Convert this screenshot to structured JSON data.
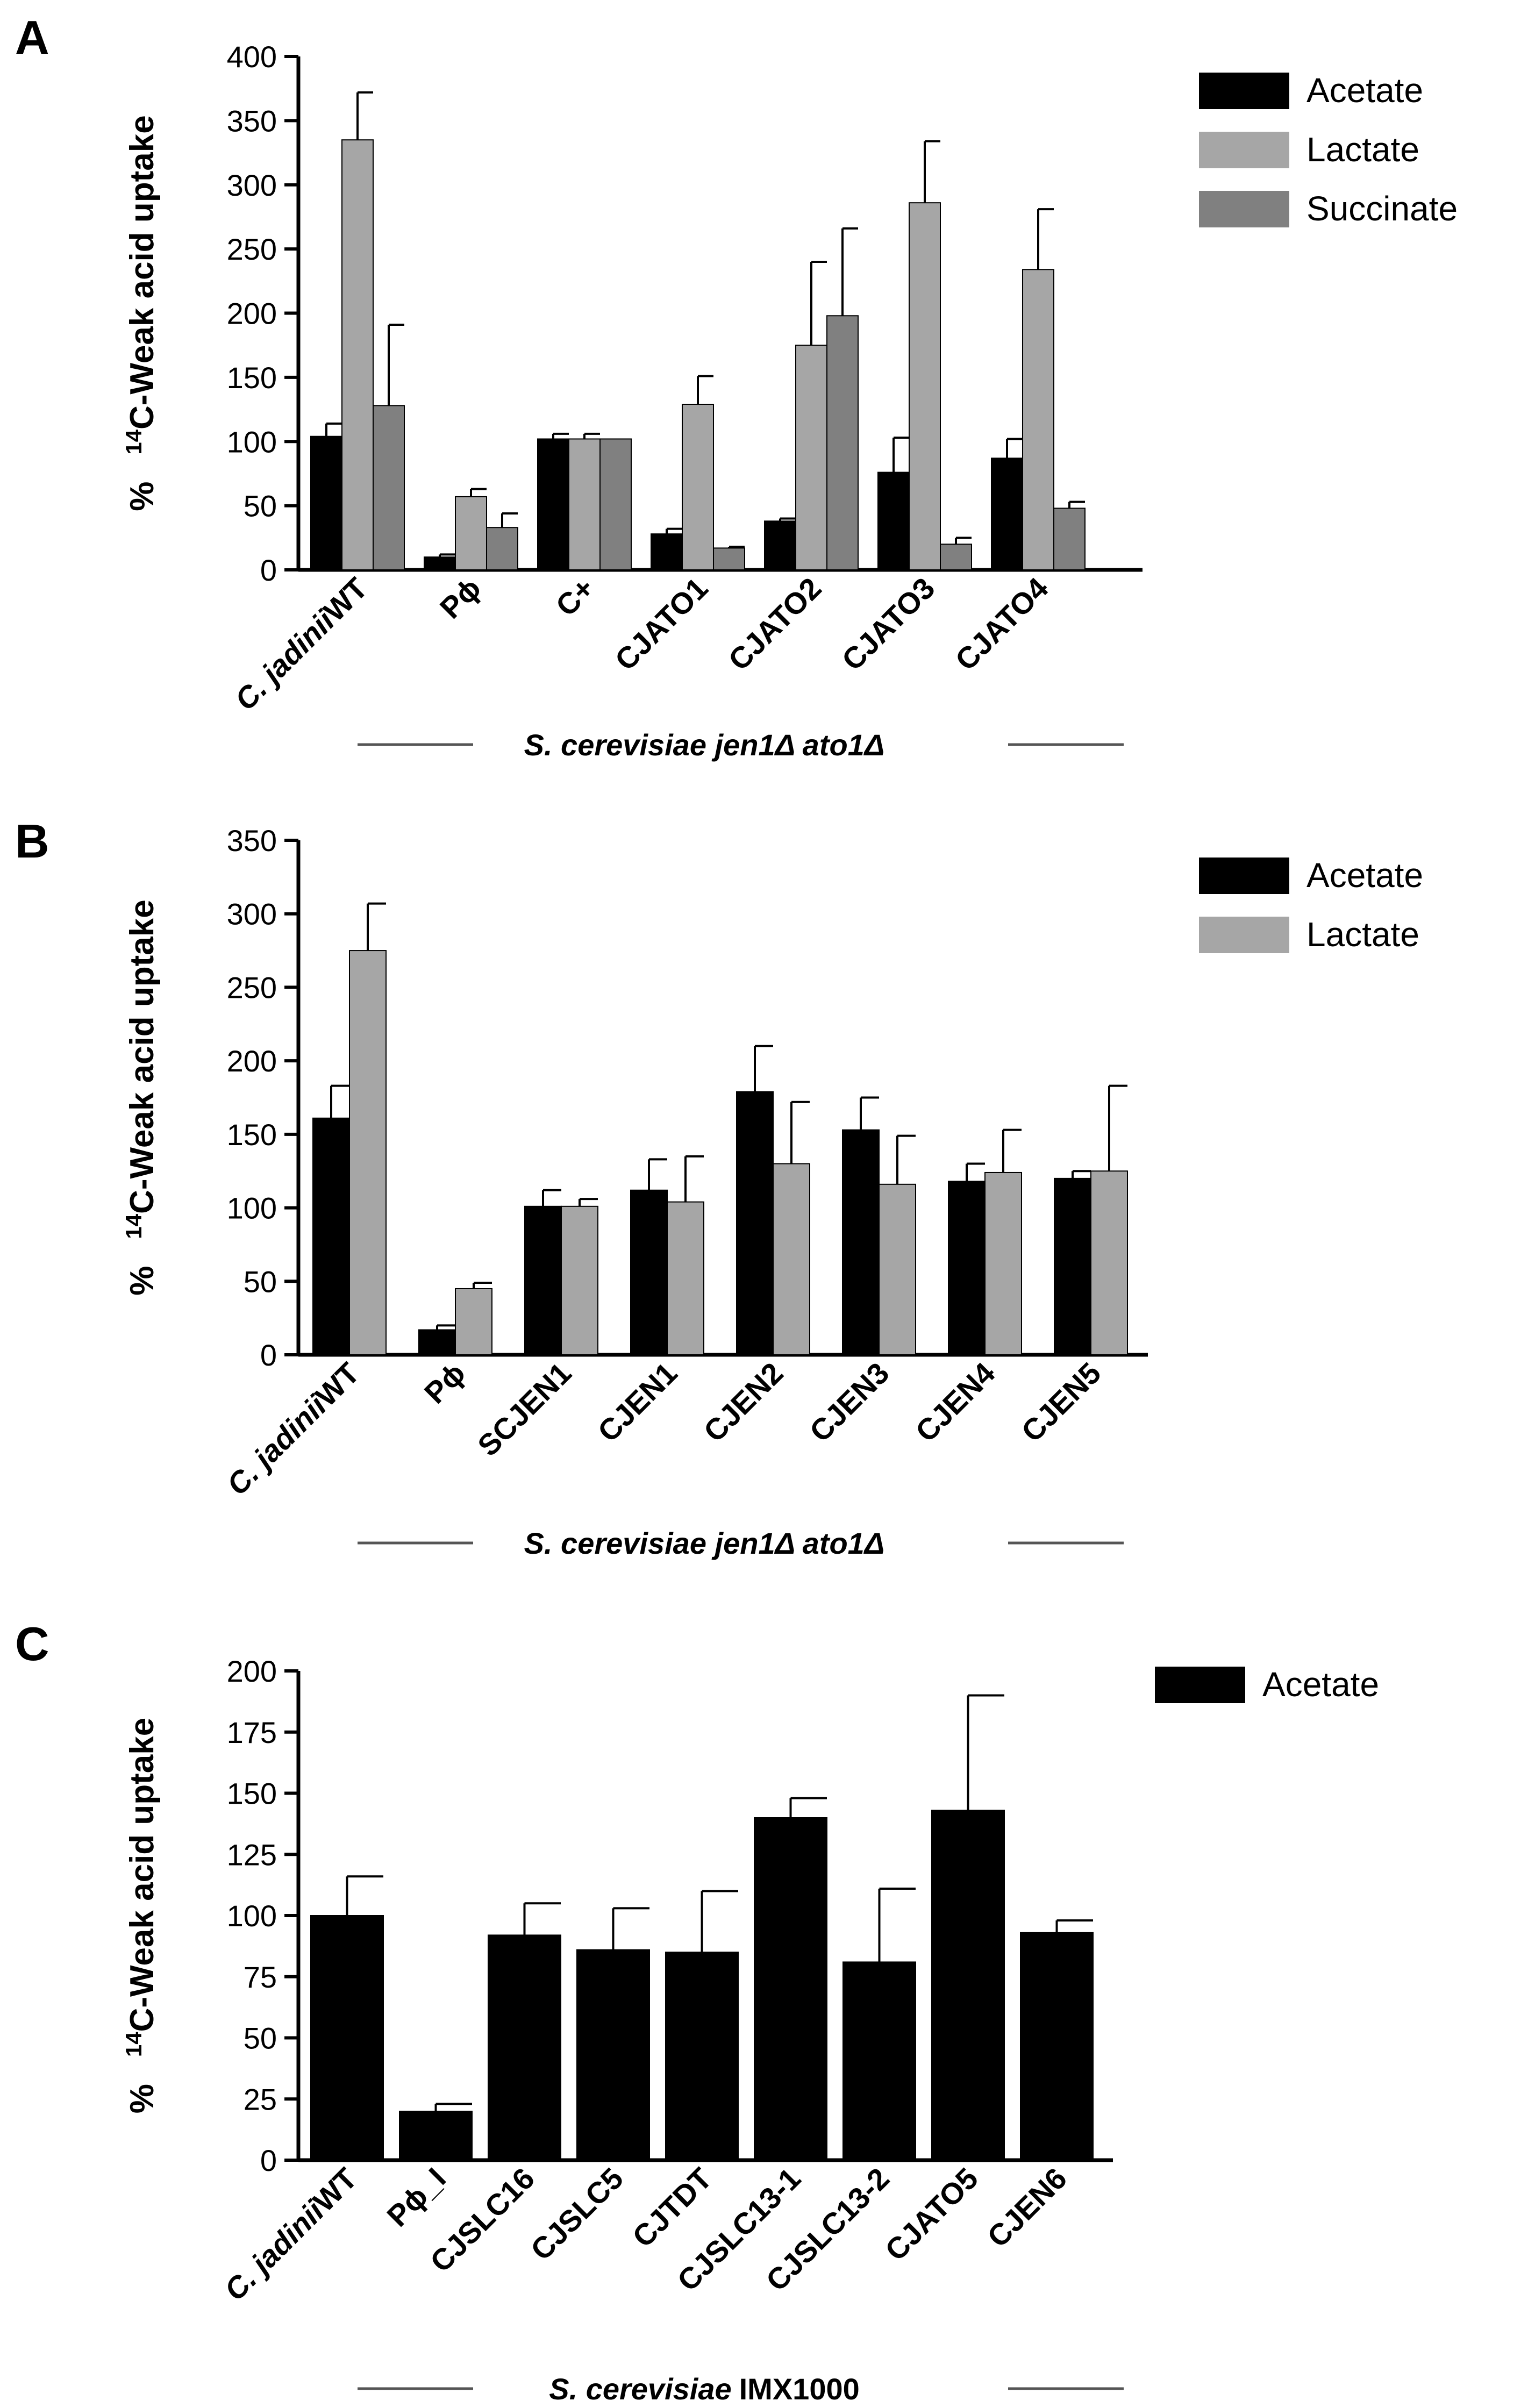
{
  "figure": {
    "group_label_text_A": "S. cerevisiae jen1Δ ato1Δ",
    "group_label_text_B": "S. cerevisiae jen1Δ ato1Δ",
    "group_label_italic_C": "S. cerevisiae",
    "group_label_plain_C": "IMX1000"
  },
  "chart_data": [
    {
      "panel": "A",
      "type": "bar",
      "ylabel_prefix": "%",
      "ylabel_sup": "14",
      "ylabel_main": "C-Weak acid uptake",
      "ylim": [
        0,
        400
      ],
      "yticks": [
        0,
        50,
        100,
        150,
        200,
        250,
        300,
        350,
        400
      ],
      "categories": [
        "C. jadinii WT",
        "Pϕ",
        "C+",
        "CJATO1",
        "CJATO2",
        "CJATO3",
        "CJATO4"
      ],
      "series": [
        {
          "name": "Acetate",
          "color": "#000000",
          "values": [
            104,
            10,
            102,
            28,
            38,
            76,
            87
          ],
          "errors": [
            10,
            2,
            4,
            4,
            2,
            27,
            15
          ]
        },
        {
          "name": "Lactate",
          "color": "#a6a6a6",
          "values": [
            335,
            57,
            102,
            129,
            175,
            286,
            234
          ],
          "errors": [
            37,
            6,
            4,
            22,
            65,
            48,
            47
          ]
        },
        {
          "name": "Succinate",
          "color": "#808080",
          "values": [
            128,
            33,
            102,
            17,
            198,
            20,
            48
          ],
          "errors": [
            63,
            11,
            0,
            1,
            68,
            5,
            5
          ]
        }
      ],
      "legend_position": "top-right",
      "group_label": "S. cerevisiae jen1Δ ato1Δ"
    },
    {
      "panel": "B",
      "type": "bar",
      "ylabel_prefix": "%",
      "ylabel_sup": "14",
      "ylabel_main": "C-Weak acid uptake",
      "ylim": [
        0,
        350
      ],
      "yticks": [
        0,
        50,
        100,
        150,
        200,
        250,
        300,
        350
      ],
      "categories": [
        "C. jadinii WT",
        "Pϕ",
        "SCJEN1",
        "CJEN1",
        "CJEN2",
        "CJEN3",
        "CJEN4",
        "CJEN5"
      ],
      "series": [
        {
          "name": "Acetate",
          "color": "#000000",
          "values": [
            161,
            17,
            101,
            112,
            179,
            153,
            118,
            120
          ],
          "errors": [
            22,
            3,
            11,
            21,
            31,
            22,
            12,
            5
          ]
        },
        {
          "name": "Lactate",
          "color": "#a6a6a6",
          "values": [
            275,
            45,
            101,
            104,
            130,
            116,
            124,
            125
          ],
          "errors": [
            32,
            4,
            5,
            31,
            42,
            33,
            29,
            58
          ]
        }
      ],
      "legend_position": "top-right",
      "group_label": "S. cerevisiae jen1Δ ato1Δ"
    },
    {
      "panel": "C",
      "type": "bar",
      "ylabel_prefix": "%",
      "ylabel_sup": "14",
      "ylabel_main": "C-Weak acid uptake",
      "ylim": [
        0,
        200
      ],
      "yticks": [
        0,
        25,
        50,
        75,
        100,
        125,
        150,
        175,
        200
      ],
      "categories": [
        "C. jadinii WT",
        "Pϕ_I",
        "CJSLC16",
        "CJSLC5",
        "CJTDT",
        "CJSLC13-1",
        "CJSLC13-2",
        "CJATO5",
        "CJEN6"
      ],
      "series": [
        {
          "name": "Acetate",
          "color": "#000000",
          "values": [
            100,
            20,
            92,
            86,
            85,
            140,
            81,
            143,
            93
          ],
          "errors": [
            16,
            3,
            13,
            17,
            25,
            8,
            30,
            47,
            5
          ]
        }
      ],
      "legend_position": "top-right",
      "group_label": "S. cerevisiae IMX1000"
    }
  ]
}
